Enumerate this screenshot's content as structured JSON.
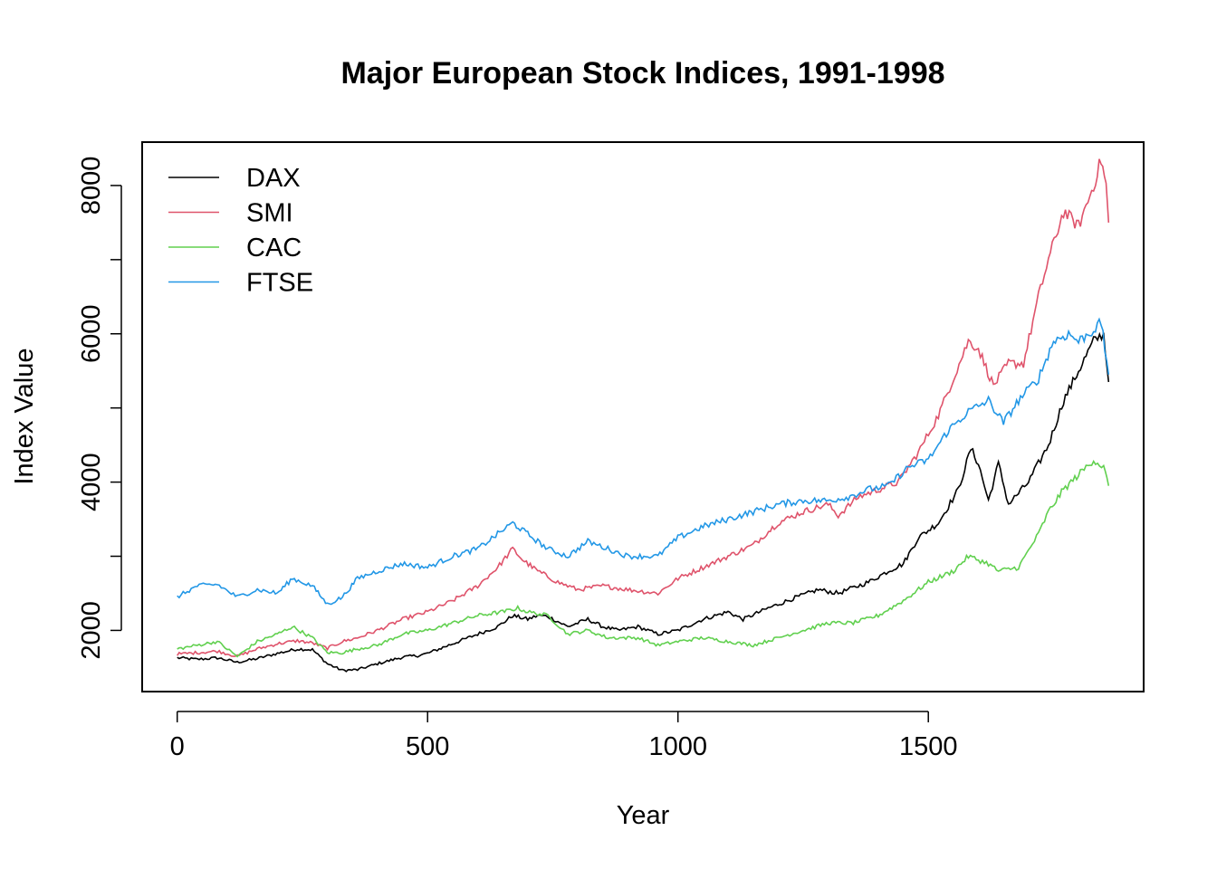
{
  "chart_data": {
    "type": "line",
    "title": "Major European Stock Indices, 1991-1998",
    "xlabel": "Year",
    "ylabel": "Index Value",
    "xlim": [
      -70,
      1930
    ],
    "ylim": [
      1175,
      8585
    ],
    "x_ticks": [
      0,
      500,
      1000,
      1500
    ],
    "x_tick_labels": [
      "0",
      "500",
      "1000",
      "1500"
    ],
    "y_ticks": [
      2000,
      4000,
      6000,
      8000
    ],
    "y_tick_labels": [
      "2000",
      "4000",
      "6000",
      "8000"
    ],
    "y_minor_ticks": [
      3000,
      5000,
      7000
    ],
    "grid": false,
    "legend_position": "top-left",
    "series": [
      {
        "name": "DAX",
        "color": "#000000",
        "points": [
          [
            0,
            1630
          ],
          [
            40,
            1610
          ],
          [
            80,
            1630
          ],
          [
            120,
            1570
          ],
          [
            160,
            1620
          ],
          [
            200,
            1690
          ],
          [
            240,
            1750
          ],
          [
            270,
            1740
          ],
          [
            300,
            1550
          ],
          [
            330,
            1460
          ],
          [
            360,
            1470
          ],
          [
            400,
            1550
          ],
          [
            450,
            1640
          ],
          [
            480,
            1660
          ],
          [
            500,
            1690
          ],
          [
            550,
            1820
          ],
          [
            600,
            1950
          ],
          [
            640,
            2050
          ],
          [
            670,
            2200
          ],
          [
            700,
            2150
          ],
          [
            720,
            2200
          ],
          [
            740,
            2190
          ],
          [
            780,
            2050
          ],
          [
            820,
            2150
          ],
          [
            850,
            2050
          ],
          [
            880,
            2000
          ],
          [
            920,
            2050
          ],
          [
            960,
            1950
          ],
          [
            1000,
            2000
          ],
          [
            1050,
            2150
          ],
          [
            1100,
            2250
          ],
          [
            1130,
            2150
          ],
          [
            1180,
            2300
          ],
          [
            1230,
            2430
          ],
          [
            1280,
            2550
          ],
          [
            1320,
            2500
          ],
          [
            1380,
            2650
          ],
          [
            1420,
            2800
          ],
          [
            1450,
            2900
          ],
          [
            1480,
            3250
          ],
          [
            1520,
            3450
          ],
          [
            1560,
            3900
          ],
          [
            1585,
            4450
          ],
          [
            1600,
            4250
          ],
          [
            1620,
            3750
          ],
          [
            1640,
            4250
          ],
          [
            1660,
            3700
          ],
          [
            1700,
            4000
          ],
          [
            1740,
            4500
          ],
          [
            1770,
            5100
          ],
          [
            1800,
            5500
          ],
          [
            1830,
            5900
          ],
          [
            1850,
            6000
          ],
          [
            1860,
            5350
          ]
        ]
      },
      {
        "name": "SMI",
        "color": "#DF536B",
        "points": [
          [
            0,
            1680
          ],
          [
            40,
            1700
          ],
          [
            80,
            1720
          ],
          [
            120,
            1650
          ],
          [
            160,
            1750
          ],
          [
            200,
            1820
          ],
          [
            240,
            1860
          ],
          [
            270,
            1830
          ],
          [
            300,
            1760
          ],
          [
            330,
            1850
          ],
          [
            360,
            1900
          ],
          [
            400,
            2000
          ],
          [
            450,
            2150
          ],
          [
            500,
            2250
          ],
          [
            550,
            2400
          ],
          [
            600,
            2600
          ],
          [
            640,
            2850
          ],
          [
            670,
            3100
          ],
          [
            690,
            2950
          ],
          [
            720,
            2800
          ],
          [
            760,
            2650
          ],
          [
            800,
            2550
          ],
          [
            850,
            2600
          ],
          [
            900,
            2550
          ],
          [
            960,
            2500
          ],
          [
            1000,
            2700
          ],
          [
            1050,
            2850
          ],
          [
            1100,
            3000
          ],
          [
            1150,
            3150
          ],
          [
            1200,
            3450
          ],
          [
            1250,
            3600
          ],
          [
            1300,
            3700
          ],
          [
            1320,
            3550
          ],
          [
            1360,
            3800
          ],
          [
            1400,
            3900
          ],
          [
            1440,
            4000
          ],
          [
            1460,
            4200
          ],
          [
            1480,
            4400
          ],
          [
            1520,
            4900
          ],
          [
            1550,
            5400
          ],
          [
            1580,
            5900
          ],
          [
            1600,
            5800
          ],
          [
            1630,
            5300
          ],
          [
            1660,
            5600
          ],
          [
            1690,
            5600
          ],
          [
            1720,
            6500
          ],
          [
            1740,
            7000
          ],
          [
            1770,
            7650
          ],
          [
            1800,
            7450
          ],
          [
            1830,
            8000
          ],
          [
            1845,
            8350
          ],
          [
            1855,
            8000
          ],
          [
            1860,
            7500
          ]
        ]
      },
      {
        "name": "CAC",
        "color": "#61D04F",
        "points": [
          [
            0,
            1750
          ],
          [
            40,
            1800
          ],
          [
            80,
            1850
          ],
          [
            120,
            1650
          ],
          [
            160,
            1850
          ],
          [
            200,
            1950
          ],
          [
            230,
            2050
          ],
          [
            270,
            1900
          ],
          [
            300,
            1700
          ],
          [
            330,
            1700
          ],
          [
            360,
            1750
          ],
          [
            400,
            1800
          ],
          [
            450,
            1950
          ],
          [
            500,
            2000
          ],
          [
            550,
            2100
          ],
          [
            600,
            2200
          ],
          [
            650,
            2250
          ],
          [
            680,
            2300
          ],
          [
            700,
            2250
          ],
          [
            740,
            2200
          ],
          [
            780,
            1950
          ],
          [
            820,
            2000
          ],
          [
            860,
            1900
          ],
          [
            920,
            1900
          ],
          [
            960,
            1800
          ],
          [
            1000,
            1850
          ],
          [
            1050,
            1900
          ],
          [
            1100,
            1850
          ],
          [
            1150,
            1800
          ],
          [
            1200,
            1900
          ],
          [
            1250,
            2000
          ],
          [
            1300,
            2100
          ],
          [
            1350,
            2100
          ],
          [
            1400,
            2200
          ],
          [
            1450,
            2400
          ],
          [
            1500,
            2650
          ],
          [
            1550,
            2800
          ],
          [
            1580,
            3000
          ],
          [
            1620,
            2900
          ],
          [
            1640,
            2800
          ],
          [
            1680,
            2850
          ],
          [
            1720,
            3300
          ],
          [
            1740,
            3600
          ],
          [
            1770,
            3900
          ],
          [
            1800,
            4100
          ],
          [
            1830,
            4300
          ],
          [
            1850,
            4200
          ],
          [
            1860,
            3950
          ]
        ]
      },
      {
        "name": "FTSE",
        "color": "#2297E6",
        "points": [
          [
            0,
            2450
          ],
          [
            40,
            2600
          ],
          [
            80,
            2620
          ],
          [
            120,
            2450
          ],
          [
            160,
            2550
          ],
          [
            200,
            2500
          ],
          [
            230,
            2700
          ],
          [
            270,
            2600
          ],
          [
            300,
            2350
          ],
          [
            330,
            2450
          ],
          [
            360,
            2700
          ],
          [
            400,
            2800
          ],
          [
            450,
            2900
          ],
          [
            500,
            2850
          ],
          [
            550,
            3000
          ],
          [
            600,
            3100
          ],
          [
            640,
            3300
          ],
          [
            670,
            3450
          ],
          [
            700,
            3300
          ],
          [
            740,
            3100
          ],
          [
            780,
            3000
          ],
          [
            820,
            3200
          ],
          [
            860,
            3100
          ],
          [
            900,
            3000
          ],
          [
            960,
            3000
          ],
          [
            1000,
            3250
          ],
          [
            1050,
            3400
          ],
          [
            1100,
            3500
          ],
          [
            1150,
            3600
          ],
          [
            1200,
            3700
          ],
          [
            1250,
            3750
          ],
          [
            1300,
            3750
          ],
          [
            1340,
            3800
          ],
          [
            1380,
            3900
          ],
          [
            1420,
            3950
          ],
          [
            1460,
            4200
          ],
          [
            1500,
            4300
          ],
          [
            1540,
            4700
          ],
          [
            1580,
            4950
          ],
          [
            1620,
            5100
          ],
          [
            1650,
            4800
          ],
          [
            1680,
            5100
          ],
          [
            1720,
            5400
          ],
          [
            1750,
            5900
          ],
          [
            1780,
            6000
          ],
          [
            1800,
            5900
          ],
          [
            1830,
            6050
          ],
          [
            1845,
            6150
          ],
          [
            1860,
            5450
          ]
        ]
      }
    ]
  }
}
